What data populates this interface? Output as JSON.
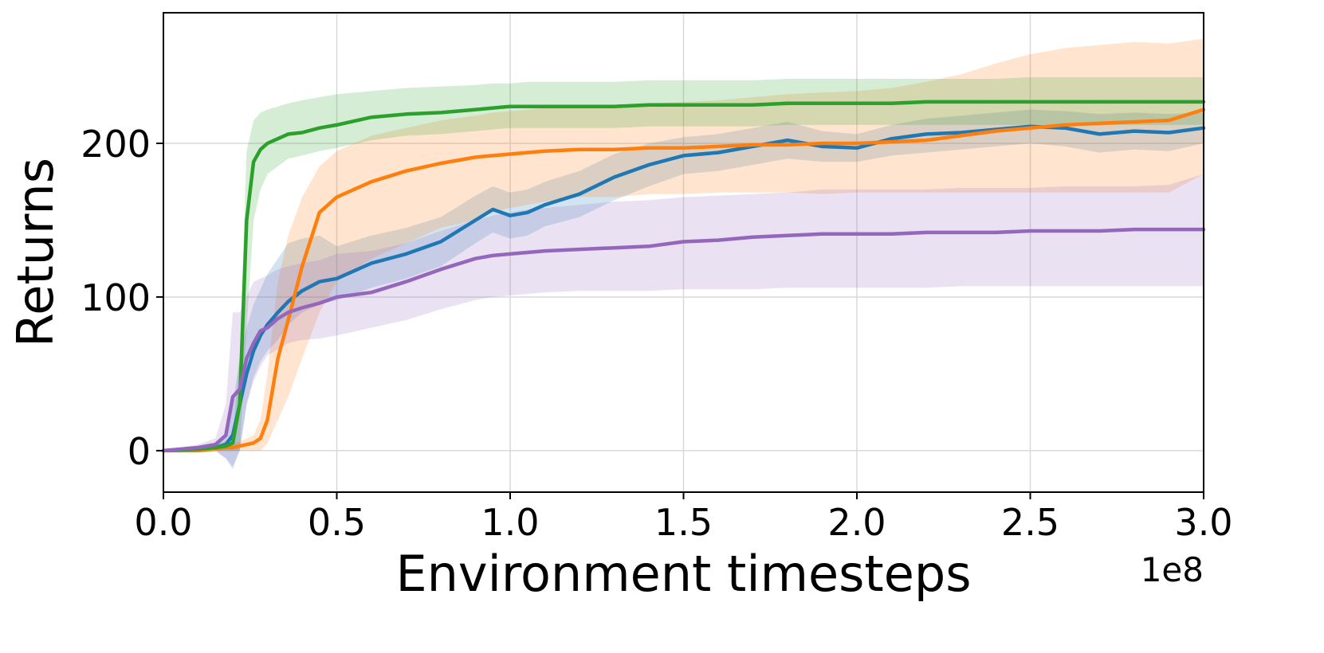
{
  "chart_data": {
    "type": "line",
    "title": "",
    "xlabel": "Environment timesteps",
    "ylabel": "Returns",
    "x_offset_label": "1e8",
    "xlim": [
      0.0,
      3.0
    ],
    "ylim": [
      -27,
      285
    ],
    "xticks": [
      0.0,
      0.5,
      1.0,
      1.5,
      2.0,
      2.5,
      3.0
    ],
    "xtick_labels": [
      "0.0",
      "0.5",
      "1.0",
      "1.5",
      "2.0",
      "2.5",
      "3.0"
    ],
    "yticks": [
      0,
      100,
      200
    ],
    "ytick_labels": [
      "0",
      "100",
      "200"
    ],
    "grid": true,
    "x": [
      0.0,
      0.1,
      0.15,
      0.18,
      0.2,
      0.22,
      0.24,
      0.26,
      0.28,
      0.3,
      0.33,
      0.36,
      0.4,
      0.45,
      0.5,
      0.6,
      0.7,
      0.8,
      0.9,
      0.95,
      1.0,
      1.05,
      1.1,
      1.2,
      1.3,
      1.4,
      1.5,
      1.6,
      1.7,
      1.8,
      1.9,
      2.0,
      2.1,
      2.2,
      2.3,
      2.4,
      2.5,
      2.6,
      2.7,
      2.8,
      2.9,
      3.0
    ],
    "series": [
      {
        "name": "blue",
        "color": "#1f77b4",
        "fill": "#1f77b4",
        "mean": [
          0,
          1,
          2,
          4,
          10,
          30,
          50,
          65,
          75,
          82,
          90,
          97,
          104,
          110,
          112,
          122,
          128,
          136,
          150,
          157,
          153,
          155,
          160,
          167,
          178,
          186,
          192,
          194,
          198,
          202,
          198,
          197,
          203,
          206,
          207,
          209,
          211,
          210,
          206,
          208,
          207,
          210
        ],
        "lower": [
          0,
          0,
          0,
          -5,
          -12,
          0,
          30,
          48,
          58,
          65,
          72,
          82,
          90,
          95,
          98,
          106,
          112,
          120,
          135,
          142,
          138,
          140,
          146,
          152,
          163,
          172,
          180,
          182,
          186,
          190,
          188,
          188,
          192,
          194,
          196,
          198,
          200,
          198,
          194,
          196,
          195,
          200
        ],
        "upper": [
          0,
          2,
          4,
          10,
          30,
          60,
          80,
          95,
          105,
          115,
          125,
          135,
          138,
          140,
          133,
          140,
          145,
          152,
          166,
          172,
          168,
          170,
          175,
          182,
          193,
          200,
          204,
          206,
          210,
          214,
          208,
          206,
          212,
          216,
          218,
          220,
          222,
          221,
          219,
          220,
          219,
          220
        ]
      },
      {
        "name": "orange",
        "color": "#ff7f0e",
        "fill": "#ff7f0e",
        "mean": [
          0,
          0,
          1,
          2,
          2,
          3,
          4,
          5,
          8,
          20,
          60,
          85,
          120,
          155,
          165,
          175,
          182,
          187,
          191,
          192,
          193,
          194,
          195,
          196,
          196,
          197,
          197,
          198,
          199,
          199,
          200,
          200,
          201,
          202,
          205,
          208,
          210,
          212,
          213,
          214,
          215,
          222
        ],
        "lower": [
          0,
          0,
          0,
          0,
          0,
          0,
          0,
          0,
          0,
          5,
          20,
          35,
          60,
          90,
          110,
          125,
          135,
          145,
          150,
          155,
          158,
          160,
          162,
          165,
          165,
          167,
          167,
          168,
          168,
          168,
          167,
          168,
          168,
          168,
          168,
          168,
          168,
          168,
          168,
          168,
          168,
          180
        ],
        "upper": [
          0,
          1,
          2,
          4,
          5,
          6,
          8,
          10,
          20,
          50,
          110,
          140,
          165,
          185,
          195,
          205,
          210,
          215,
          218,
          220,
          221,
          222,
          223,
          224,
          225,
          226,
          227,
          228,
          230,
          232,
          233,
          234,
          236,
          240,
          245,
          252,
          258,
          262,
          264,
          266,
          265,
          268
        ]
      },
      {
        "name": "green",
        "color": "#2ca02c",
        "fill": "#2ca02c",
        "mean": [
          0,
          1,
          2,
          3,
          5,
          30,
          150,
          188,
          196,
          200,
          203,
          206,
          207,
          210,
          212,
          217,
          219,
          220,
          222,
          223,
          224,
          224,
          224,
          224,
          224,
          225,
          225,
          225,
          225,
          226,
          226,
          226,
          226,
          227,
          227,
          227,
          227,
          227,
          227,
          227,
          227,
          227
        ],
        "lower": [
          0,
          0,
          0,
          0,
          0,
          0,
          80,
          150,
          170,
          180,
          185,
          190,
          192,
          195,
          197,
          202,
          205,
          206,
          208,
          209,
          210,
          210,
          210,
          210,
          210,
          211,
          211,
          211,
          211,
          212,
          212,
          212,
          212,
          212,
          212,
          212,
          212,
          212,
          212,
          212,
          212,
          212
        ],
        "upper": [
          0,
          2,
          4,
          6,
          10,
          60,
          195,
          215,
          220,
          222,
          224,
          226,
          228,
          230,
          232,
          234,
          236,
          237,
          238,
          239,
          239,
          240,
          240,
          240,
          240,
          241,
          241,
          241,
          241,
          242,
          242,
          242,
          242,
          242,
          242,
          242,
          243,
          243,
          243,
          243,
          243,
          243
        ]
      },
      {
        "name": "purple",
        "color": "#9467bd",
        "fill": "#9467bd",
        "mean": [
          0,
          2,
          4,
          10,
          35,
          40,
          60,
          70,
          78,
          80,
          86,
          90,
          93,
          96,
          100,
          103,
          110,
          118,
          125,
          127,
          128,
          129,
          130,
          131,
          132,
          133,
          136,
          137,
          139,
          140,
          141,
          141,
          141,
          142,
          142,
          142,
          143,
          143,
          143,
          144,
          144,
          144
        ],
        "lower": [
          0,
          0,
          0,
          -5,
          -10,
          0,
          30,
          45,
          55,
          62,
          66,
          70,
          72,
          73,
          75,
          80,
          85,
          92,
          98,
          100,
          101,
          102,
          103,
          104,
          104,
          104,
          105,
          105,
          105,
          106,
          106,
          106,
          106,
          106,
          107,
          107,
          107,
          107,
          107,
          107,
          107,
          107
        ],
        "upper": [
          0,
          4,
          8,
          30,
          90,
          90,
          100,
          110,
          112,
          114,
          118,
          120,
          122,
          124,
          128,
          130,
          135,
          143,
          150,
          153,
          155,
          157,
          158,
          160,
          162,
          163,
          165,
          166,
          167,
          168,
          170,
          170,
          170,
          170,
          171,
          171,
          171,
          172,
          172,
          172,
          173,
          180
        ]
      }
    ]
  }
}
